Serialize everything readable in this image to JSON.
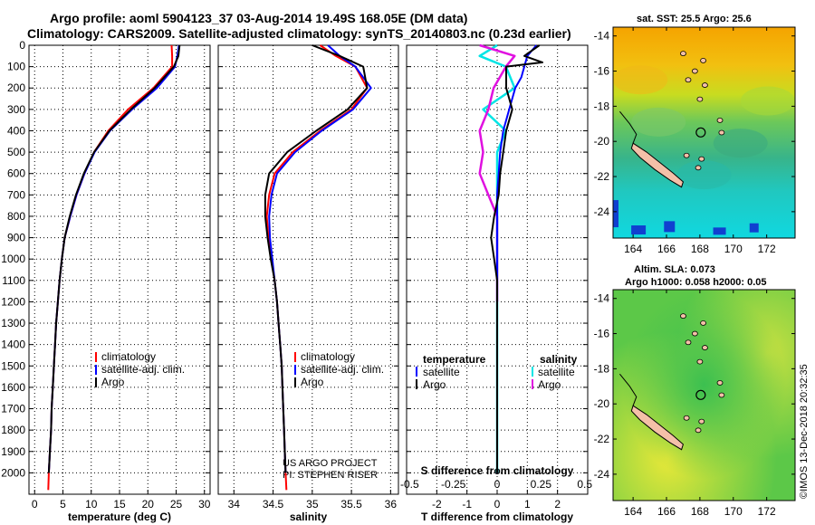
{
  "header": {
    "title_line1": "Argo profile: aoml 5904123_37 03-Aug-2014 19.49S 168.05E (DM data)",
    "title_line2": "Climatology: CARS2009. Satellite-adjusted climatology: synTS_20140803.nc (0.23d earlier)"
  },
  "credits": {
    "line1": "US ARGO PROJECT",
    "line2": "PI: STEPHEN RISER",
    "imos": "©IMOS 13-Dec-2018 20:32:35"
  },
  "map_titles": {
    "sst": "sat. SST: 25.5 Argo: 25.6",
    "altim_line1": "Altim. SLA: 0.073",
    "altim_line2": "Argo h1000: 0.058 h2000: 0.05"
  },
  "colors": {
    "climatology": "#ff0000",
    "satellite": "#0000ff",
    "argo": "#000000",
    "satellite_salinity": "#00e5e5",
    "argo_salinity": "#e010e0",
    "land": "#f4c0a8"
  },
  "chart_data": [
    {
      "id": "temperature",
      "type": "line",
      "xlabel": "temperature (deg C)",
      "ylabel": "",
      "xlim": [
        -1,
        31
      ],
      "ylim": [
        2100,
        0
      ],
      "xticks": [
        0,
        5,
        10,
        15,
        20,
        25,
        30
      ],
      "yticks": [
        0,
        100,
        200,
        300,
        400,
        500,
        600,
        700,
        800,
        900,
        1000,
        1100,
        1200,
        1300,
        1400,
        1500,
        1600,
        1700,
        1800,
        1900,
        2000
      ],
      "grid": true,
      "legend": [
        "climatology",
        "satellite-adj. clim.",
        "Argo"
      ],
      "series": [
        {
          "name": "climatology",
          "color": "#ff0000",
          "points": [
            [
              24.2,
              0
            ],
            [
              24.3,
              50
            ],
            [
              24.3,
              100
            ],
            [
              21.0,
              200
            ],
            [
              16.5,
              300
            ],
            [
              13.0,
              400
            ],
            [
              10.5,
              500
            ],
            [
              8.8,
              600
            ],
            [
              7.4,
              700
            ],
            [
              6.3,
              800
            ],
            [
              5.3,
              900
            ],
            [
              4.8,
              1000
            ],
            [
              4.4,
              1100
            ],
            [
              4.1,
              1200
            ],
            [
              3.8,
              1300
            ],
            [
              3.6,
              1400
            ],
            [
              3.4,
              1500
            ],
            [
              3.2,
              1600
            ],
            [
              3.0,
              1700
            ],
            [
              2.9,
              1800
            ],
            [
              2.7,
              1900
            ],
            [
              2.5,
              2000
            ],
            [
              2.4,
              2080
            ]
          ]
        },
        {
          "name": "satellite-adj. clim.",
          "color": "#0000ff",
          "points": [
            [
              25.5,
              0
            ],
            [
              25.2,
              50
            ],
            [
              24.8,
              100
            ],
            [
              21.6,
              200
            ],
            [
              17.2,
              300
            ],
            [
              13.3,
              400
            ],
            [
              10.6,
              500
            ],
            [
              8.8,
              600
            ],
            [
              7.4,
              700
            ],
            [
              6.3,
              800
            ],
            [
              5.3,
              900
            ],
            [
              4.8,
              1000
            ],
            [
              4.4,
              1100
            ],
            [
              4.1,
              1200
            ],
            [
              3.8,
              1300
            ],
            [
              3.6,
              1400
            ],
            [
              3.4,
              1500
            ],
            [
              3.2,
              1600
            ],
            [
              3.0,
              1700
            ],
            [
              2.9,
              1800
            ],
            [
              2.7,
              1900
            ],
            [
              2.5,
              2000
            ]
          ]
        },
        {
          "name": "Argo",
          "color": "#000000",
          "points": [
            [
              25.6,
              0
            ],
            [
              25.4,
              50
            ],
            [
              24.6,
              100
            ],
            [
              21.2,
              200
            ],
            [
              17.0,
              300
            ],
            [
              13.2,
              400
            ],
            [
              10.5,
              500
            ],
            [
              8.7,
              600
            ],
            [
              7.3,
              700
            ],
            [
              6.2,
              800
            ],
            [
              5.3,
              900
            ],
            [
              4.8,
              1000
            ],
            [
              4.4,
              1100
            ],
            [
              4.1,
              1200
            ],
            [
              3.8,
              1300
            ],
            [
              3.6,
              1400
            ],
            [
              3.4,
              1500
            ],
            [
              3.2,
              1600
            ],
            [
              3.0,
              1700
            ],
            [
              2.9,
              1800
            ],
            [
              2.7,
              1900
            ],
            [
              2.5,
              2000
            ]
          ]
        }
      ]
    },
    {
      "id": "salinity",
      "type": "line",
      "xlabel": "salinity",
      "ylabel": "",
      "xlim": [
        33.8,
        36.1
      ],
      "ylim": [
        2100,
        0
      ],
      "xticks": [
        34,
        34.5,
        35,
        35.5,
        36
      ],
      "grid": true,
      "legend": [
        "climatology",
        "satellite-adj. clim.",
        "Argo"
      ],
      "series": [
        {
          "name": "climatology",
          "color": "#ff0000",
          "points": [
            [
              35.1,
              0
            ],
            [
              35.3,
              50
            ],
            [
              35.55,
              100
            ],
            [
              35.7,
              200
            ],
            [
              35.5,
              300
            ],
            [
              35.1,
              400
            ],
            [
              34.75,
              500
            ],
            [
              34.52,
              600
            ],
            [
              34.45,
              700
            ],
            [
              34.42,
              800
            ],
            [
              34.44,
              900
            ],
            [
              34.48,
              1000
            ],
            [
              34.52,
              1100
            ],
            [
              34.55,
              1200
            ],
            [
              34.57,
              1300
            ],
            [
              34.59,
              1400
            ],
            [
              34.61,
              1500
            ],
            [
              34.62,
              1600
            ],
            [
              34.63,
              1700
            ],
            [
              34.64,
              1800
            ],
            [
              34.65,
              1900
            ],
            [
              34.66,
              2000
            ],
            [
              34.67,
              2080
            ]
          ]
        },
        {
          "name": "satellite-adj. clim.",
          "color": "#0000ff",
          "points": [
            [
              35.2,
              0
            ],
            [
              35.35,
              50
            ],
            [
              35.55,
              100
            ],
            [
              35.75,
              200
            ],
            [
              35.52,
              300
            ],
            [
              35.12,
              400
            ],
            [
              34.78,
              500
            ],
            [
              34.55,
              600
            ],
            [
              34.48,
              700
            ],
            [
              34.45,
              800
            ],
            [
              34.46,
              900
            ],
            [
              34.49,
              1000
            ],
            [
              34.52,
              1100
            ],
            [
              34.55,
              1200
            ],
            [
              34.57,
              1300
            ],
            [
              34.59,
              1400
            ],
            [
              34.61,
              1500
            ],
            [
              34.62,
              1600
            ],
            [
              34.63,
              1700
            ],
            [
              34.64,
              1800
            ],
            [
              34.65,
              1900
            ],
            [
              34.66,
              2000
            ]
          ]
        },
        {
          "name": "Argo",
          "color": "#000000",
          "points": [
            [
              35.0,
              0
            ],
            [
              35.35,
              50
            ],
            [
              35.65,
              100
            ],
            [
              35.7,
              200
            ],
            [
              35.45,
              300
            ],
            [
              35.05,
              400
            ],
            [
              34.68,
              500
            ],
            [
              34.45,
              600
            ],
            [
              34.4,
              700
            ],
            [
              34.4,
              800
            ],
            [
              34.43,
              900
            ],
            [
              34.47,
              1000
            ],
            [
              34.52,
              1100
            ],
            [
              34.55,
              1200
            ],
            [
              34.57,
              1300
            ],
            [
              34.59,
              1400
            ],
            [
              34.61,
              1500
            ],
            [
              34.62,
              1600
            ],
            [
              34.63,
              1700
            ],
            [
              34.64,
              1800
            ],
            [
              34.65,
              1900
            ],
            [
              34.66,
              2000
            ]
          ]
        }
      ]
    },
    {
      "id": "difference",
      "type": "line",
      "xlabel": "T difference from climatology",
      "top_xlabel": "S difference from climatology",
      "ylabel": "",
      "xlim": [
        -3,
        3
      ],
      "ylim": [
        2100,
        0
      ],
      "xticks": [
        -2,
        -1,
        0,
        1,
        2
      ],
      "top_xticks": [
        -0.5,
        -0.25,
        0,
        0.25,
        0.5
      ],
      "top_xtick_labels": [
        "-0.5",
        "-0.25",
        "0",
        "0.25",
        "0.5"
      ],
      "grid": true,
      "legend_temperature_title": "temperature",
      "legend_salinity_title": "salinity",
      "legend_temperature": [
        "satellite",
        "Argo"
      ],
      "legend_salinity": [
        "satellite",
        "Argo"
      ],
      "series": [
        {
          "name": "satellite",
          "group": "temperature",
          "color": "#0000ff",
          "points": [
            [
              1.3,
              0
            ],
            [
              1.0,
              50
            ],
            [
              0.9,
              100
            ],
            [
              0.8,
              150
            ],
            [
              0.6,
              200
            ],
            [
              0.4,
              300
            ],
            [
              0.2,
              400
            ],
            [
              0.1,
              500
            ],
            [
              0.05,
              600
            ],
            [
              0.0,
              700
            ],
            [
              0.0,
              800
            ],
            [
              0.0,
              900
            ],
            [
              0.0,
              1000
            ],
            [
              0.0,
              1100
            ],
            [
              0.0,
              1200
            ],
            [
              0.0,
              1400
            ],
            [
              0.0,
              1600
            ],
            [
              0.0,
              1800
            ],
            [
              0.0,
              2000
            ]
          ]
        },
        {
          "name": "Argo",
          "group": "temperature",
          "color": "#000000",
          "points": [
            [
              1.4,
              0
            ],
            [
              0.9,
              50
            ],
            [
              1.5,
              80
            ],
            [
              0.3,
              100
            ],
            [
              0.3,
              200
            ],
            [
              0.5,
              300
            ],
            [
              0.3,
              400
            ],
            [
              0.2,
              500
            ],
            [
              0.1,
              600
            ],
            [
              0.05,
              700
            ],
            [
              -0.1,
              800
            ],
            [
              -0.2,
              900
            ],
            [
              -0.1,
              1000
            ],
            [
              0.0,
              1100
            ],
            [
              0.0,
              1200
            ],
            [
              0.0,
              1400
            ],
            [
              0.0,
              1600
            ],
            [
              0.0,
              1800
            ],
            [
              0.0,
              2000
            ]
          ]
        },
        {
          "name": "satellite",
          "group": "salinity",
          "color": "#00e5e5",
          "points": [
            [
              0.0,
              0
            ],
            [
              -0.1,
              50
            ],
            [
              0.05,
              100
            ],
            [
              0.1,
              200
            ],
            [
              -0.08,
              300
            ],
            [
              0.05,
              400
            ],
            [
              0.0,
              500
            ],
            [
              0.0,
              600
            ],
            [
              0.0,
              800
            ],
            [
              0.0,
              1000
            ],
            [
              0.0,
              1200
            ],
            [
              0.0,
              1400
            ],
            [
              0.0,
              1600
            ],
            [
              0.0,
              1800
            ],
            [
              0.0,
              2000
            ]
          ]
        },
        {
          "name": "Argo",
          "group": "salinity",
          "color": "#e010e0",
          "points": [
            [
              -0.1,
              0
            ],
            [
              0.1,
              50
            ],
            [
              0.05,
              100
            ],
            [
              -0.02,
              200
            ],
            [
              -0.05,
              300
            ],
            [
              -0.1,
              400
            ],
            [
              -0.08,
              500
            ],
            [
              -0.1,
              600
            ],
            [
              -0.05,
              700
            ],
            [
              0.0,
              800
            ],
            [
              0.0,
              900
            ],
            [
              0.0,
              1000
            ],
            [
              0.0,
              1100
            ],
            [
              0.0,
              1200
            ]
          ]
        }
      ]
    },
    {
      "id": "sst_map",
      "type": "heatmap",
      "title": "sat. SST: 25.5 Argo: 25.6",
      "xlim": [
        162.8,
        173.7
      ],
      "ylim": [
        -25.5,
        -13.5
      ],
      "xticks": [
        164,
        166,
        168,
        170,
        172
      ],
      "yticks": [
        -14,
        -16,
        -18,
        -20,
        -22,
        -24
      ],
      "float_position": [
        168.05,
        -19.49
      ]
    },
    {
      "id": "sla_map",
      "type": "heatmap",
      "title": "Altim. SLA: 0.073",
      "subtitle": "Argo h1000: 0.058 h2000: 0.05",
      "xlim": [
        162.8,
        173.7
      ],
      "ylim": [
        -25.5,
        -13.5
      ],
      "xticks": [
        164,
        166,
        168,
        170,
        172
      ],
      "yticks": [
        -14,
        -16,
        -18,
        -20,
        -22,
        -24
      ],
      "float_position": [
        168.05,
        -19.49
      ]
    }
  ]
}
